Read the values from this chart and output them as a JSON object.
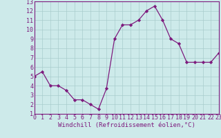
{
  "x": [
    0,
    1,
    2,
    3,
    4,
    5,
    6,
    7,
    8,
    9,
    10,
    11,
    12,
    13,
    14,
    15,
    16,
    17,
    18,
    19,
    20,
    21,
    22,
    23
  ],
  "y": [
    5.0,
    5.5,
    4.0,
    4.0,
    3.5,
    2.5,
    2.5,
    2.0,
    1.5,
    3.7,
    9.0,
    10.5,
    10.5,
    11.0,
    12.0,
    12.5,
    11.0,
    9.0,
    8.5,
    6.5,
    6.5,
    6.5,
    6.5,
    7.5
  ],
  "xlim": [
    0,
    23
  ],
  "ylim": [
    1,
    13
  ],
  "yticks": [
    1,
    2,
    3,
    4,
    5,
    6,
    7,
    8,
    9,
    10,
    11,
    12,
    13
  ],
  "xticks": [
    0,
    1,
    2,
    3,
    4,
    5,
    6,
    7,
    8,
    9,
    10,
    11,
    12,
    13,
    14,
    15,
    16,
    17,
    18,
    19,
    20,
    21,
    22,
    23
  ],
  "xlabel": "Windchill (Refroidissement éolien,°C)",
  "line_color": "#7d1a7d",
  "marker": "D",
  "marker_size": 2.2,
  "bg_color": "#cdeaea",
  "grid_color": "#a8cccc",
  "tick_fontsize": 6.0,
  "xlabel_fontsize": 6.5,
  "tick_color": "#7d1a7d",
  "spine_color": "#7d1a7d"
}
